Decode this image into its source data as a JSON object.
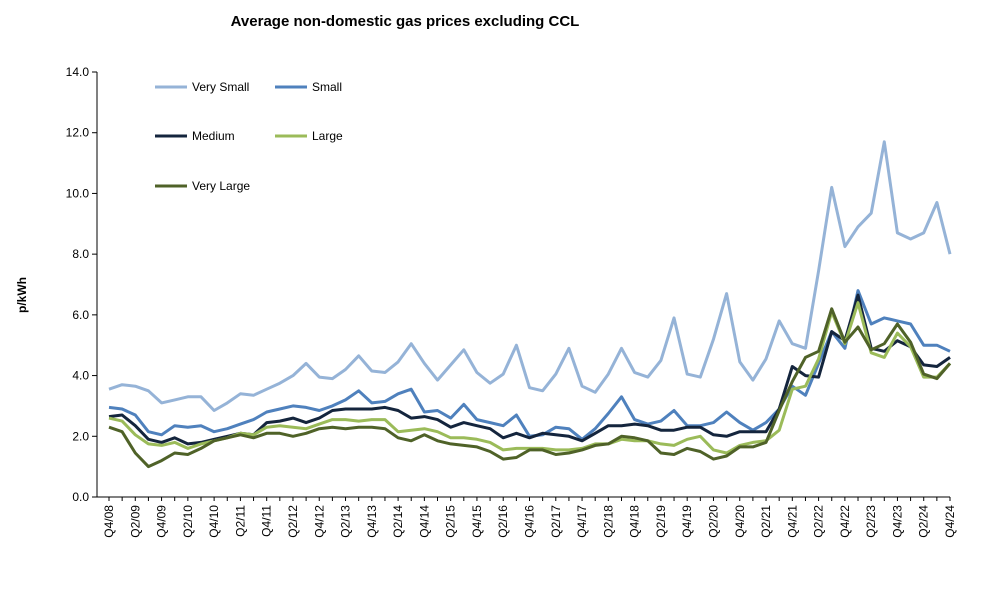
{
  "chart_data": {
    "type": "line",
    "title": "Average non-domestic gas prices excluding CCL",
    "ylabel": "p/kWh",
    "xlabel": "",
    "ylim": [
      0,
      14
    ],
    "yticks": [
      "0.0",
      "2.0",
      "4.0",
      "6.0",
      "8.0",
      "10.0",
      "12.0",
      "14.0"
    ],
    "grid": false,
    "legend_placement": "top-left",
    "x": [
      "Q4/08",
      "Q1/09",
      "Q2/09",
      "Q3/09",
      "Q4/09",
      "Q1/10",
      "Q2/10",
      "Q3/10",
      "Q4/10",
      "Q1/11",
      "Q2/11",
      "Q3/11",
      "Q4/11",
      "Q1/12",
      "Q2/12",
      "Q3/12",
      "Q4/12",
      "Q1/13",
      "Q2/13",
      "Q3/13",
      "Q4/13",
      "Q1/14",
      "Q2/14",
      "Q3/14",
      "Q4/14",
      "Q1/15",
      "Q2/15",
      "Q3/15",
      "Q4/15",
      "Q1/16",
      "Q2/16",
      "Q3/16",
      "Q4/16",
      "Q1/17",
      "Q2/17",
      "Q3/17",
      "Q4/17",
      "Q1/18",
      "Q2/18",
      "Q3/18",
      "Q4/18",
      "Q1/19",
      "Q2/19",
      "Q3/19",
      "Q4/19",
      "Q1/20",
      "Q2/20",
      "Q3/20",
      "Q4/20",
      "Q1/21",
      "Q2/21",
      "Q3/21",
      "Q4/21",
      "Q1/22",
      "Q2/22",
      "Q3/22",
      "Q4/22",
      "Q1/23",
      "Q2/23",
      "Q3/23",
      "Q4/23",
      "Q1/24",
      "Q2/24",
      "Q3/24",
      "Q4/24"
    ],
    "xtick_labels": [
      "Q4/08",
      "Q2/09",
      "Q4/09",
      "Q2/10",
      "Q4/10",
      "Q2/11",
      "Q4/11",
      "Q2/12",
      "Q4/12",
      "Q2/13",
      "Q4/13",
      "Q2/14",
      "Q4/14",
      "Q2/15",
      "Q4/15",
      "Q2/16",
      "Q4/16",
      "Q2/17",
      "Q4/17",
      "Q2/18",
      "Q4/18",
      "Q2/19",
      "Q4/19",
      "Q2/20",
      "Q4/20",
      "Q2/21",
      "Q4/21",
      "Q2/22",
      "Q4/22",
      "Q2/23",
      "Q4/23",
      "Q2/24",
      "Q4/24"
    ],
    "series": [
      {
        "name": "Very Small",
        "color": "#95b3d7",
        "values": [
          3.55,
          3.7,
          3.65,
          3.5,
          3.1,
          3.2,
          3.3,
          3.3,
          2.85,
          3.1,
          3.4,
          3.35,
          3.55,
          3.75,
          4.0,
          4.4,
          3.95,
          3.9,
          4.2,
          4.65,
          4.15,
          4.1,
          4.45,
          5.05,
          4.4,
          3.85,
          4.35,
          4.85,
          4.1,
          3.75,
          4.05,
          5.0,
          3.6,
          3.5,
          4.05,
          4.9,
          3.65,
          3.45,
          4.05,
          4.9,
          4.1,
          3.95,
          4.5,
          5.9,
          4.05,
          3.95,
          5.2,
          6.7,
          4.45,
          3.85,
          4.55,
          5.8,
          5.05,
          4.9,
          7.45,
          10.2,
          8.25,
          8.9,
          9.35,
          11.7,
          8.7,
          8.5,
          8.7,
          9.7,
          8.0
        ]
      },
      {
        "name": "Small",
        "color": "#4f81bd",
        "values": [
          2.95,
          2.9,
          2.7,
          2.15,
          2.05,
          2.35,
          2.3,
          2.35,
          2.15,
          2.25,
          2.4,
          2.55,
          2.8,
          2.9,
          3.0,
          2.95,
          2.85,
          3.0,
          3.2,
          3.5,
          3.1,
          3.15,
          3.4,
          3.55,
          2.8,
          2.85,
          2.6,
          3.05,
          2.55,
          2.45,
          2.35,
          2.7,
          2.0,
          2.05,
          2.3,
          2.25,
          1.9,
          2.25,
          2.75,
          3.3,
          2.55,
          2.4,
          2.5,
          2.85,
          2.35,
          2.35,
          2.45,
          2.8,
          2.45,
          2.2,
          2.45,
          2.9,
          3.65,
          3.35,
          4.4,
          5.45,
          4.9,
          6.8,
          5.7,
          5.9,
          5.8,
          5.7,
          5.0,
          5.0,
          4.8
        ]
      },
      {
        "name": "Medium",
        "color": "#14253d",
        "values": [
          2.65,
          2.7,
          2.35,
          1.9,
          1.8,
          1.95,
          1.75,
          1.8,
          1.9,
          2.0,
          2.1,
          2.05,
          2.45,
          2.5,
          2.6,
          2.45,
          2.6,
          2.85,
          2.9,
          2.9,
          2.9,
          2.95,
          2.85,
          2.6,
          2.65,
          2.55,
          2.3,
          2.45,
          2.35,
          2.25,
          1.95,
          2.1,
          1.95,
          2.1,
          2.05,
          2.0,
          1.85,
          2.1,
          2.35,
          2.35,
          2.4,
          2.35,
          2.2,
          2.2,
          2.3,
          2.3,
          2.05,
          2.0,
          2.15,
          2.15,
          2.15,
          2.9,
          4.3,
          4.0,
          3.95,
          5.45,
          5.15,
          6.65,
          4.9,
          4.8,
          5.15,
          4.95,
          4.35,
          4.3,
          4.6
        ]
      },
      {
        "name": "Large",
        "color": "#9bbb59",
        "values": [
          2.6,
          2.5,
          2.05,
          1.75,
          1.7,
          1.8,
          1.6,
          1.75,
          1.85,
          1.95,
          2.1,
          2.05,
          2.3,
          2.35,
          2.3,
          2.25,
          2.4,
          2.55,
          2.55,
          2.5,
          2.55,
          2.55,
          2.15,
          2.2,
          2.25,
          2.15,
          1.95,
          1.95,
          1.9,
          1.8,
          1.55,
          1.6,
          1.6,
          1.6,
          1.55,
          1.55,
          1.6,
          1.75,
          1.75,
          1.9,
          1.85,
          1.85,
          1.75,
          1.7,
          1.9,
          2.0,
          1.55,
          1.45,
          1.7,
          1.8,
          1.85,
          2.2,
          3.55,
          3.65,
          4.55,
          6.1,
          5.05,
          6.4,
          4.75,
          4.6,
          5.4,
          4.95,
          3.95,
          3.95,
          4.4
        ]
      },
      {
        "name": "Very Large",
        "color": "#4f6228",
        "values": [
          2.3,
          2.15,
          1.45,
          1.0,
          1.2,
          1.45,
          1.4,
          1.6,
          1.85,
          1.95,
          2.05,
          1.95,
          2.1,
          2.1,
          2.0,
          2.1,
          2.25,
          2.3,
          2.25,
          2.3,
          2.3,
          2.25,
          1.95,
          1.85,
          2.05,
          1.85,
          1.75,
          1.7,
          1.65,
          1.5,
          1.25,
          1.3,
          1.55,
          1.55,
          1.4,
          1.45,
          1.55,
          1.7,
          1.75,
          2.0,
          1.95,
          1.85,
          1.45,
          1.4,
          1.6,
          1.5,
          1.25,
          1.35,
          1.65,
          1.65,
          1.8,
          2.85,
          3.8,
          4.6,
          4.8,
          6.2,
          5.1,
          5.6,
          4.85,
          5.05,
          5.7,
          5.1,
          4.05,
          3.9,
          4.4
        ]
      }
    ]
  }
}
